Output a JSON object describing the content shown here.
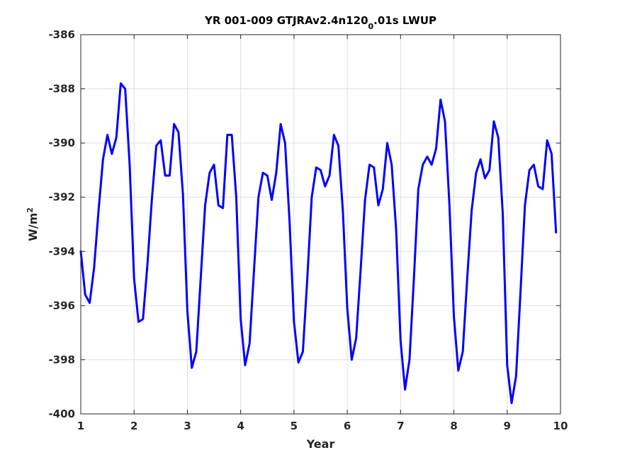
{
  "chart_data": {
    "type": "line",
    "title_parts": {
      "main": "YR 001-009 GTJRAv2.4n120",
      "subscript": "0",
      "suffix": ".01s LWUP"
    },
    "xlabel": "Year",
    "ylabel_base": "W/m",
    "ylabel_superscript": "2",
    "xlim": [
      1,
      10
    ],
    "ylim": [
      -400,
      -386
    ],
    "xticks": [
      1,
      2,
      3,
      4,
      5,
      6,
      7,
      8,
      9,
      10
    ],
    "yticks": [
      -400,
      -398,
      -396,
      -394,
      -392,
      -390,
      -388,
      -386
    ],
    "grid": true,
    "series": [
      {
        "color": "#0000ff",
        "x": [
          1.0,
          1.083,
          1.167,
          1.25,
          1.333,
          1.417,
          1.5,
          1.583,
          1.667,
          1.75,
          1.833,
          1.917,
          2.0,
          2.083,
          2.167,
          2.25,
          2.333,
          2.417,
          2.5,
          2.583,
          2.667,
          2.75,
          2.833,
          2.917,
          3.0,
          3.083,
          3.167,
          3.25,
          3.333,
          3.417,
          3.5,
          3.583,
          3.667,
          3.75,
          3.833,
          3.917,
          4.0,
          4.083,
          4.167,
          4.25,
          4.333,
          4.417,
          4.5,
          4.583,
          4.667,
          4.75,
          4.833,
          4.917,
          5.0,
          5.083,
          5.167,
          5.25,
          5.333,
          5.417,
          5.5,
          5.583,
          5.667,
          5.75,
          5.833,
          5.917,
          6.0,
          6.083,
          6.167,
          6.25,
          6.333,
          6.417,
          6.5,
          6.583,
          6.667,
          6.75,
          6.833,
          6.917,
          7.0,
          7.083,
          7.167,
          7.25,
          7.333,
          7.417,
          7.5,
          7.583,
          7.667,
          7.75,
          7.833,
          7.917,
          8.0,
          8.083,
          8.167,
          8.25,
          8.333,
          8.417,
          8.5,
          8.583,
          8.667,
          8.75,
          8.833,
          8.917,
          9.0,
          9.083,
          9.167,
          9.25,
          9.333,
          9.417,
          9.5,
          9.583,
          9.667,
          9.75,
          9.833,
          9.917
        ],
        "y": [
          -394.0,
          -395.6,
          -395.9,
          -394.6,
          -392.5,
          -390.6,
          -389.7,
          -390.4,
          -389.8,
          -387.8,
          -388.0,
          -390.8,
          -395.0,
          -396.6,
          -396.5,
          -394.5,
          -392.1,
          -390.1,
          -389.9,
          -391.2,
          -391.2,
          -389.3,
          -389.6,
          -391.9,
          -396.2,
          -398.3,
          -397.7,
          -395.0,
          -392.3,
          -391.1,
          -390.8,
          -392.3,
          -392.4,
          -389.7,
          -389.7,
          -392.0,
          -396.5,
          -398.2,
          -397.4,
          -394.7,
          -392.0,
          -391.1,
          -391.2,
          -392.1,
          -391.1,
          -389.3,
          -390.0,
          -392.9,
          -396.6,
          -398.1,
          -397.7,
          -395.0,
          -392.0,
          -390.9,
          -391.0,
          -391.6,
          -391.2,
          -389.7,
          -390.1,
          -392.5,
          -396.1,
          -398.0,
          -397.2,
          -394.7,
          -392.1,
          -390.8,
          -390.9,
          -392.3,
          -391.7,
          -390.0,
          -390.8,
          -393.2,
          -397.3,
          -399.1,
          -398.0,
          -395.0,
          -391.7,
          -390.8,
          -390.5,
          -390.8,
          -390.2,
          -388.4,
          -389.2,
          -392.3,
          -396.4,
          -398.4,
          -397.7,
          -395.0,
          -392.5,
          -391.1,
          -390.6,
          -391.3,
          -391.0,
          -389.2,
          -389.8,
          -392.6,
          -398.2,
          -399.6,
          -398.6,
          -395.5,
          -392.3,
          -391.0,
          -390.8,
          -391.6,
          -391.7,
          -389.9,
          -390.4,
          -393.3
        ]
      }
    ]
  }
}
